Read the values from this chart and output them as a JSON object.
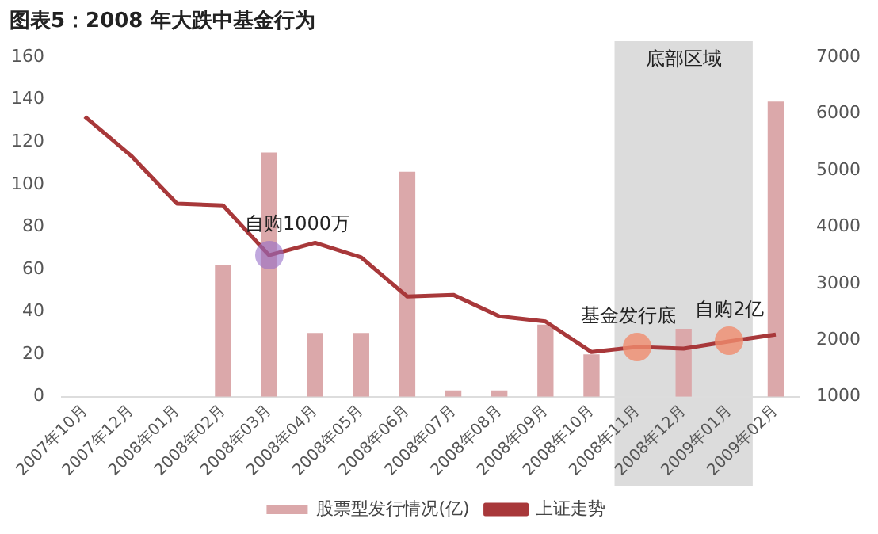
{
  "chart_data": {
    "type": "bar",
    "title": "图表5：2008 年大跌中基金行为",
    "categories": [
      "2007年10月",
      "2007年12月",
      "2008年01月",
      "2008年02月",
      "2008年03月",
      "2008年04月",
      "2008年05月",
      "2008年06月",
      "2008年07月",
      "2008年08月",
      "2008年09月",
      "2008年10月",
      "2008年11月",
      "2008年12月",
      "2009年01月",
      "2009年02月"
    ],
    "series": [
      {
        "name": "股票型发行情况(亿)",
        "color": "#dba8aa",
        "values": [
          0,
          0,
          0,
          62,
          115,
          30,
          30,
          106,
          3,
          3,
          34,
          20,
          0,
          32,
          0,
          139
        ]
      },
      {
        "name": "上证走势",
        "type": "line",
        "axis": "y2",
        "color": "#a8383a",
        "values": [
          5950,
          5260,
          4410,
          4380,
          3500,
          3720,
          3460,
          2770,
          2800,
          2420,
          2330,
          1790,
          1880,
          1850,
          1980,
          2100
        ]
      }
    ],
    "ylim": [
      0,
      160
    ],
    "yticks": [
      0,
      20,
      40,
      60,
      80,
      100,
      120,
      140,
      160
    ],
    "y2lim": [
      1000,
      7000
    ],
    "y2ticks": [
      1000,
      2000,
      3000,
      4000,
      5000,
      6000,
      7000
    ],
    "bands": [
      {
        "axis": "x",
        "from": "2008年11月",
        "to": "2009年01月",
        "label": "底部区域",
        "color": "#dcdcdc"
      }
    ],
    "annotations": [
      "自购1000万",
      "基金发行底",
      "自购2亿"
    ],
    "grid": false,
    "legend": "bottom",
    "marker": "none",
    "line_style": "solid"
  }
}
